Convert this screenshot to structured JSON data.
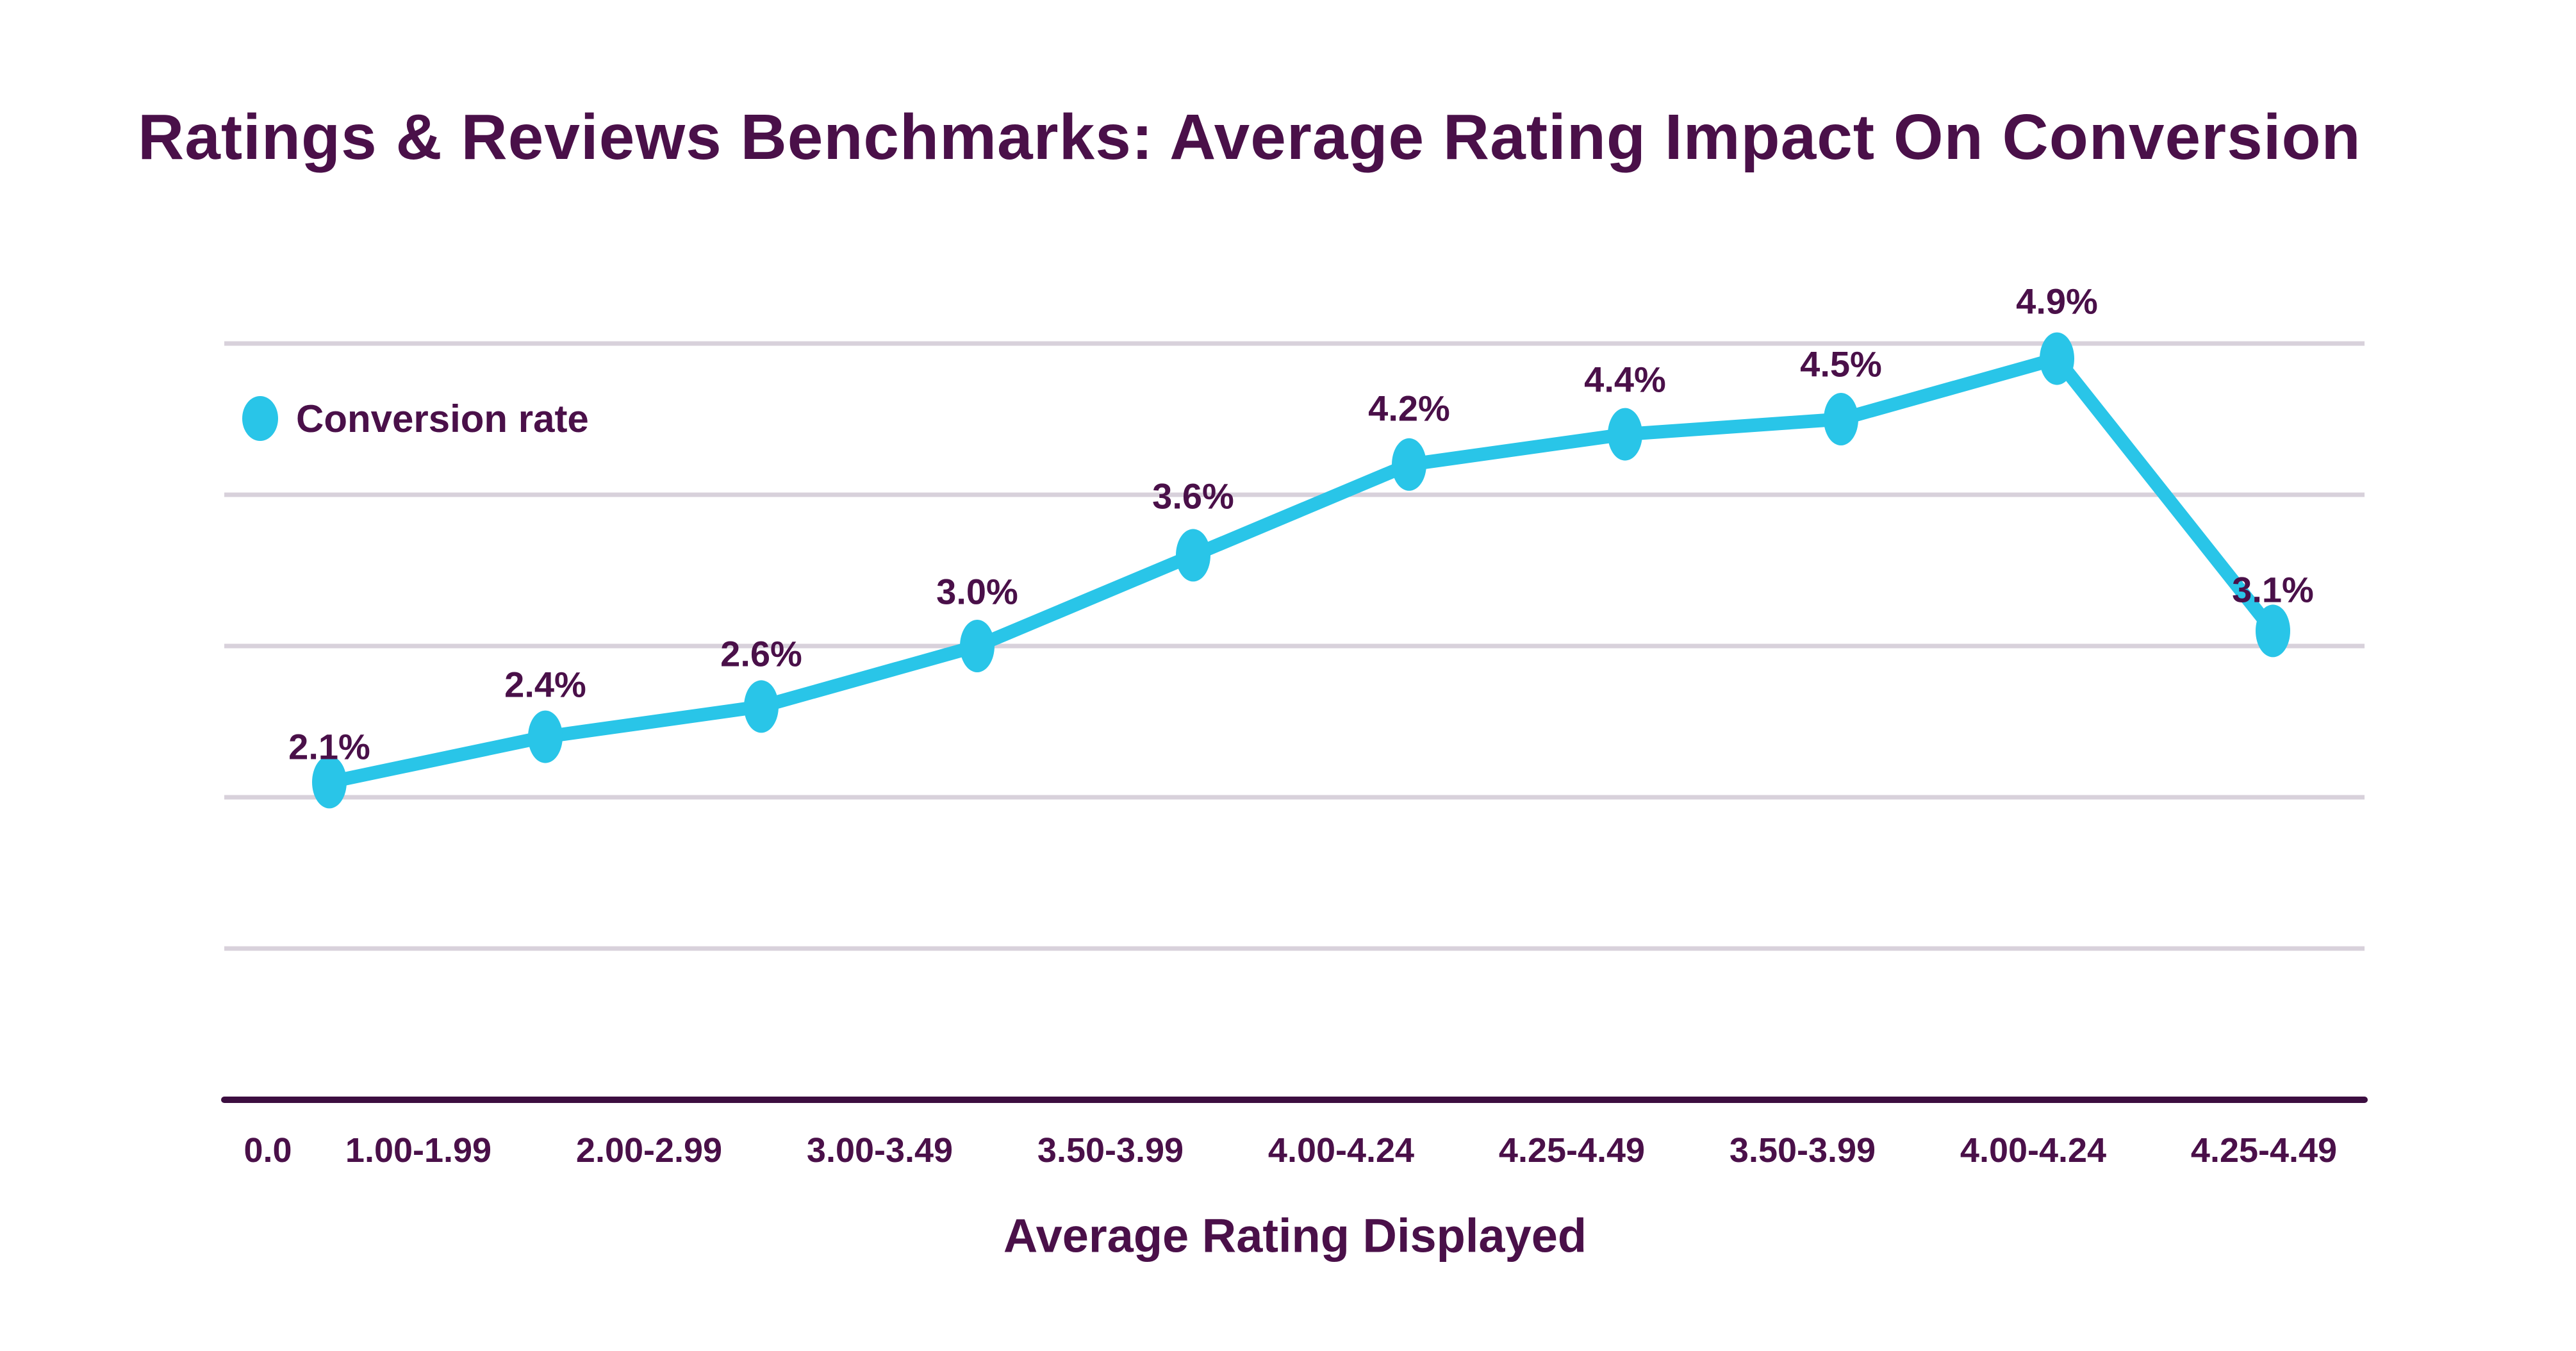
{
  "header": {
    "title": "Ratings & Reviews Benchmarks: Average Rating Impact On Conversion"
  },
  "legend": {
    "label": "Conversion rate"
  },
  "colors": {
    "accent_cyan": "#29C5E8",
    "text_purple": "#4A1049",
    "axis_purple": "#3C0E40",
    "gridline_gray": "#D8D1DB",
    "background": "#FFFFFF"
  },
  "chart_data": {
    "type": "line",
    "title": "Ratings & Reviews Benchmarks: Average Rating Impact On Conversion",
    "xlabel": "Average Rating Displayed",
    "ylabel": "",
    "categories": [
      "0.0",
      "1.00-1.99",
      "2.00-2.99",
      "3.00-3.49",
      "3.50-3.99",
      "4.00-4.24",
      "4.25-4.49",
      "3.50-3.99",
      "4.00-4.24",
      "4.25-4.49"
    ],
    "series": [
      {
        "name": "Conversion rate",
        "values": [
          2.1,
          2.4,
          2.6,
          3.0,
          3.6,
          4.2,
          4.4,
          4.5,
          4.9,
          3.1
        ],
        "labels": [
          "2.1%",
          "2.4%",
          "2.6%",
          "3.0%",
          "3.6%",
          "4.2%",
          "4.4%",
          "4.5%",
          "4.9%",
          "3.1%"
        ],
        "color": "#29C5E8"
      }
    ],
    "ylim": [
      0,
      5
    ],
    "grid": "horizontal gridlines every 1%, no y tick labels",
    "legend_position": "top-left inside plot area",
    "point_marker": "ellipse"
  }
}
